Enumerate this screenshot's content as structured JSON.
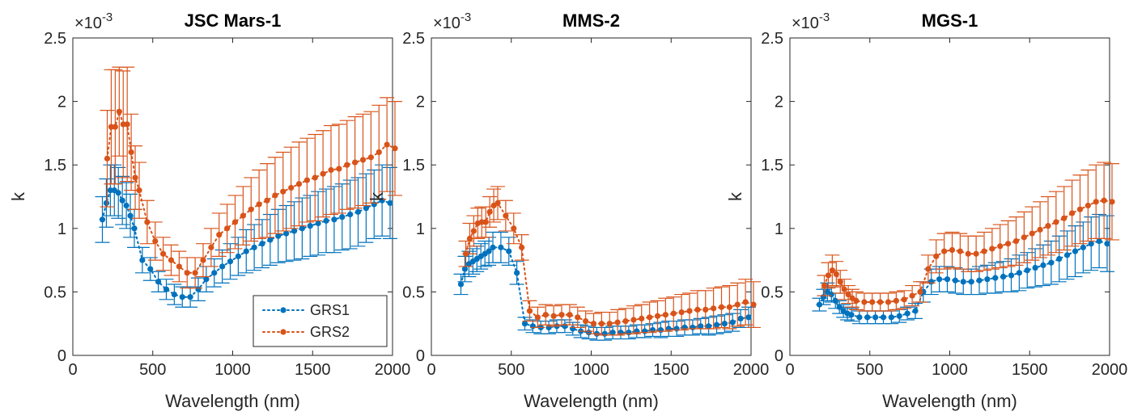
{
  "colors": {
    "GRS1": "#0072BD",
    "GRS2": "#D95319"
  },
  "legend": {
    "placement": "bottom-right of first panel",
    "entries": [
      {
        "series": "GRS1",
        "label": "GRS1"
      },
      {
        "series": "GRS2",
        "label": "GRS2"
      }
    ]
  },
  "chart_data": [
    {
      "type": "scatter",
      "title": "JSC Mars-1",
      "xlabel": "Wavelength (nm)",
      "ylabel": "k",
      "y_exponent": "×10",
      "y_exponent_power": "-3",
      "xlim": [
        0,
        2000
      ],
      "ylim": [
        0,
        2.5
      ],
      "xticks": [
        0,
        500,
        1000,
        1500,
        2000
      ],
      "yticks": [
        0,
        0.5,
        1,
        1.5,
        2,
        2.5
      ],
      "series": [
        {
          "name": "GRS1",
          "x": [
            200,
            225,
            250,
            275,
            300,
            325,
            350,
            375,
            400,
            450,
            500,
            550,
            600,
            650,
            700,
            750,
            800,
            850,
            900,
            950,
            1000,
            1050,
            1100,
            1150,
            1200,
            1250,
            1300,
            1350,
            1400,
            1450,
            1500,
            1550,
            1600,
            1650,
            1700,
            1750,
            1800,
            1850,
            1900,
            1950,
            2000
          ],
          "y": [
            1.07,
            1.2,
            1.3,
            1.3,
            1.28,
            1.22,
            1.18,
            1.1,
            1.0,
            0.75,
            0.68,
            0.58,
            0.52,
            0.48,
            0.46,
            0.46,
            0.52,
            0.6,
            0.65,
            0.7,
            0.74,
            0.78,
            0.82,
            0.85,
            0.88,
            0.91,
            0.94,
            0.96,
            0.98,
            1.0,
            1.02,
            1.04,
            1.06,
            1.07,
            1.09,
            1.11,
            1.13,
            1.16,
            1.19,
            1.22,
            1.2
          ],
          "err": [
            0.18,
            0.19,
            0.2,
            0.2,
            0.2,
            0.19,
            0.18,
            0.17,
            0.15,
            0.1,
            0.09,
            0.08,
            0.08,
            0.08,
            0.08,
            0.08,
            0.09,
            0.1,
            0.11,
            0.13,
            0.14,
            0.15,
            0.17,
            0.18,
            0.19,
            0.2,
            0.21,
            0.22,
            0.23,
            0.24,
            0.24,
            0.25,
            0.25,
            0.26,
            0.26,
            0.27,
            0.27,
            0.27,
            0.27,
            0.28,
            0.28
          ]
        },
        {
          "name": "GRS2",
          "x": [
            200,
            225,
            250,
            275,
            300,
            325,
            350,
            375,
            400,
            450,
            500,
            550,
            600,
            650,
            700,
            750,
            800,
            850,
            900,
            950,
            1000,
            1050,
            1100,
            1150,
            1200,
            1250,
            1300,
            1350,
            1400,
            1450,
            1500,
            1550,
            1600,
            1650,
            1700,
            1750,
            1800,
            1850,
            1900,
            1950,
            2000
          ],
          "y": [
            1.55,
            1.8,
            1.8,
            1.92,
            1.82,
            1.82,
            1.6,
            1.4,
            1.3,
            1.05,
            0.9,
            0.8,
            0.75,
            0.7,
            0.65,
            0.65,
            0.75,
            0.85,
            0.95,
            1.0,
            1.05,
            1.1,
            1.15,
            1.19,
            1.22,
            1.26,
            1.29,
            1.32,
            1.35,
            1.38,
            1.4,
            1.43,
            1.46,
            1.47,
            1.5,
            1.52,
            1.54,
            1.56,
            1.6,
            1.66,
            1.63
          ],
          "err": [
            0.38,
            0.45,
            0.45,
            0.35,
            0.42,
            0.45,
            0.3,
            0.25,
            0.22,
            0.17,
            0.15,
            0.13,
            0.12,
            0.12,
            0.12,
            0.12,
            0.13,
            0.15,
            0.17,
            0.19,
            0.21,
            0.23,
            0.25,
            0.27,
            0.29,
            0.3,
            0.31,
            0.32,
            0.33,
            0.33,
            0.34,
            0.34,
            0.35,
            0.35,
            0.35,
            0.36,
            0.36,
            0.36,
            0.37,
            0.37,
            0.37
          ]
        }
      ]
    },
    {
      "type": "scatter",
      "title": "MMS-2",
      "xlabel": "Wavelength (nm)",
      "ylabel": "k",
      "y_exponent": "×10",
      "y_exponent_power": "-3",
      "xlim": [
        0,
        2000
      ],
      "ylim": [
        0,
        2.5
      ],
      "xticks": [
        0,
        500,
        1000,
        1500,
        2000
      ],
      "yticks": [
        0,
        0.5,
        1,
        1.5,
        2,
        2.5
      ],
      "series": [
        {
          "name": "GRS1",
          "x": [
            200,
            225,
            250,
            275,
            300,
            325,
            350,
            375,
            400,
            450,
            500,
            550,
            600,
            650,
            700,
            750,
            800,
            850,
            900,
            950,
            1000,
            1050,
            1100,
            1150,
            1200,
            1250,
            1300,
            1350,
            1400,
            1450,
            1500,
            1550,
            1600,
            1650,
            1700,
            1750,
            1800,
            1850,
            1900,
            1950,
            2000
          ],
          "y": [
            0.56,
            0.68,
            0.72,
            0.74,
            0.76,
            0.78,
            0.8,
            0.82,
            0.85,
            0.85,
            0.82,
            0.65,
            0.25,
            0.23,
            0.22,
            0.22,
            0.23,
            0.23,
            0.21,
            0.19,
            0.18,
            0.17,
            0.17,
            0.18,
            0.18,
            0.18,
            0.19,
            0.19,
            0.2,
            0.2,
            0.21,
            0.21,
            0.22,
            0.22,
            0.23,
            0.23,
            0.24,
            0.25,
            0.26,
            0.29,
            0.3
          ],
          "err": [
            0.08,
            0.1,
            0.1,
            0.1,
            0.1,
            0.1,
            0.1,
            0.11,
            0.12,
            0.12,
            0.11,
            0.09,
            0.05,
            0.05,
            0.05,
            0.05,
            0.05,
            0.05,
            0.05,
            0.05,
            0.05,
            0.05,
            0.05,
            0.05,
            0.05,
            0.05,
            0.05,
            0.05,
            0.05,
            0.06,
            0.06,
            0.06,
            0.06,
            0.06,
            0.06,
            0.07,
            0.07,
            0.07,
            0.07,
            0.07,
            0.08
          ]
        },
        {
          "name": "GRS2",
          "x": [
            200,
            225,
            250,
            275,
            300,
            325,
            350,
            375,
            400,
            450,
            500,
            550,
            600,
            650,
            700,
            750,
            800,
            850,
            900,
            950,
            1000,
            1050,
            1100,
            1150,
            1200,
            1250,
            1300,
            1350,
            1400,
            1450,
            1500,
            1550,
            1600,
            1650,
            1700,
            1750,
            1800,
            1850,
            1900,
            1950,
            2000
          ],
          "y": [
            0.8,
            0.92,
            0.98,
            1.04,
            1.05,
            1.05,
            1.13,
            1.18,
            1.2,
            1.1,
            1.0,
            0.85,
            0.35,
            0.3,
            0.32,
            0.31,
            0.32,
            0.32,
            0.3,
            0.27,
            0.25,
            0.25,
            0.25,
            0.26,
            0.27,
            0.28,
            0.29,
            0.3,
            0.31,
            0.32,
            0.33,
            0.34,
            0.35,
            0.36,
            0.36,
            0.37,
            0.38,
            0.38,
            0.4,
            0.42,
            0.4
          ],
          "err": [
            0.1,
            0.12,
            0.12,
            0.12,
            0.12,
            0.12,
            0.12,
            0.13,
            0.13,
            0.12,
            0.12,
            0.1,
            0.08,
            0.08,
            0.08,
            0.08,
            0.08,
            0.08,
            0.08,
            0.08,
            0.08,
            0.09,
            0.09,
            0.1,
            0.1,
            0.11,
            0.11,
            0.12,
            0.12,
            0.13,
            0.13,
            0.14,
            0.14,
            0.15,
            0.15,
            0.16,
            0.16,
            0.17,
            0.17,
            0.18,
            0.18
          ]
        }
      ]
    },
    {
      "type": "scatter",
      "title": "MGS-1",
      "xlabel": "Wavelength (nm)",
      "ylabel": "k",
      "y_exponent": "×10",
      "y_exponent_power": "-3",
      "xlim": [
        0,
        2000
      ],
      "ylim": [
        0,
        2.5
      ],
      "xticks": [
        0,
        500,
        1000,
        1500,
        2000
      ],
      "yticks": [
        0,
        0.5,
        1,
        1.5,
        2,
        2.5
      ],
      "series": [
        {
          "name": "GRS1",
          "x": [
            200,
            225,
            250,
            275,
            300,
            325,
            350,
            375,
            400,
            450,
            500,
            550,
            600,
            650,
            700,
            750,
            800,
            850,
            900,
            950,
            1000,
            1050,
            1100,
            1150,
            1200,
            1250,
            1300,
            1350,
            1400,
            1450,
            1500,
            1550,
            1600,
            1650,
            1700,
            1750,
            1800,
            1850,
            1900,
            1950,
            2000
          ],
          "y": [
            0.4,
            0.46,
            0.5,
            0.48,
            0.43,
            0.38,
            0.35,
            0.33,
            0.32,
            0.3,
            0.3,
            0.3,
            0.3,
            0.3,
            0.31,
            0.33,
            0.35,
            0.5,
            0.58,
            0.6,
            0.6,
            0.59,
            0.58,
            0.58,
            0.59,
            0.6,
            0.61,
            0.62,
            0.63,
            0.65,
            0.67,
            0.69,
            0.71,
            0.73,
            0.76,
            0.79,
            0.82,
            0.85,
            0.88,
            0.9,
            0.88
          ],
          "err": [
            0.05,
            0.06,
            0.07,
            0.06,
            0.06,
            0.05,
            0.05,
            0.05,
            0.05,
            0.05,
            0.05,
            0.05,
            0.05,
            0.05,
            0.05,
            0.05,
            0.06,
            0.08,
            0.1,
            0.1,
            0.1,
            0.1,
            0.1,
            0.1,
            0.11,
            0.11,
            0.12,
            0.12,
            0.13,
            0.14,
            0.14,
            0.15,
            0.16,
            0.17,
            0.18,
            0.19,
            0.2,
            0.2,
            0.21,
            0.21,
            0.22
          ]
        },
        {
          "name": "GRS2",
          "x": [
            200,
            225,
            250,
            275,
            300,
            325,
            350,
            375,
            400,
            450,
            500,
            550,
            600,
            650,
            700,
            750,
            800,
            850,
            900,
            950,
            1000,
            1050,
            1100,
            1150,
            1200,
            1250,
            1300,
            1350,
            1400,
            1450,
            1500,
            1550,
            1600,
            1650,
            1700,
            1750,
            1800,
            1850,
            1900,
            1950,
            2000
          ],
          "y": [
            0.55,
            0.63,
            0.67,
            0.64,
            0.58,
            0.52,
            0.48,
            0.45,
            0.43,
            0.42,
            0.42,
            0.42,
            0.42,
            0.43,
            0.44,
            0.47,
            0.5,
            0.68,
            0.78,
            0.82,
            0.83,
            0.82,
            0.8,
            0.8,
            0.82,
            0.84,
            0.86,
            0.88,
            0.9,
            0.93,
            0.96,
            0.99,
            1.02,
            1.05,
            1.08,
            1.12,
            1.15,
            1.18,
            1.21,
            1.22,
            1.21
          ],
          "err": [
            0.08,
            0.1,
            0.12,
            0.1,
            0.09,
            0.08,
            0.07,
            0.07,
            0.07,
            0.07,
            0.07,
            0.07,
            0.07,
            0.07,
            0.07,
            0.08,
            0.08,
            0.11,
            0.13,
            0.14,
            0.14,
            0.14,
            0.14,
            0.14,
            0.15,
            0.16,
            0.17,
            0.18,
            0.19,
            0.2,
            0.21,
            0.22,
            0.23,
            0.24,
            0.25,
            0.26,
            0.27,
            0.28,
            0.29,
            0.3,
            0.3
          ]
        }
      ]
    }
  ]
}
